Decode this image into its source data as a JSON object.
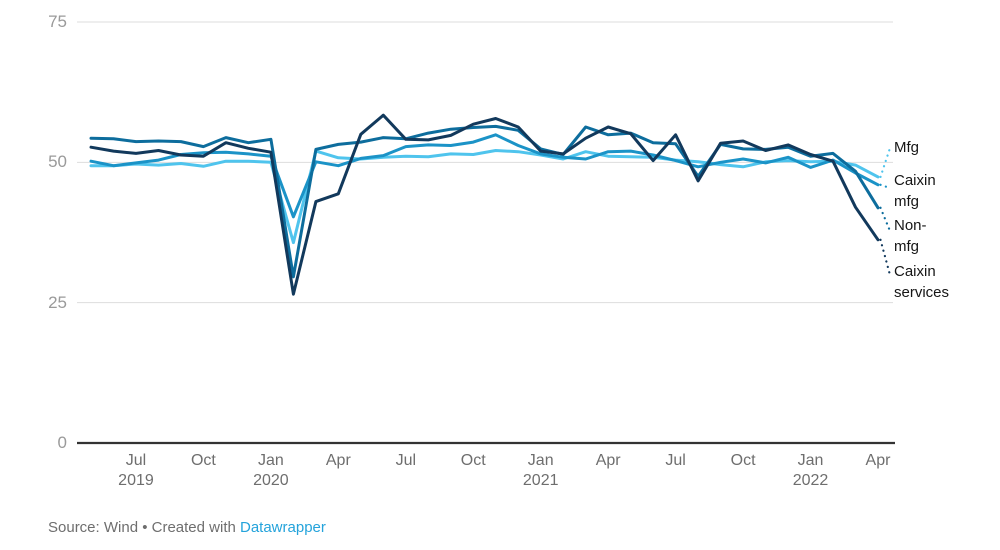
{
  "chart_data": {
    "type": "line",
    "x": [
      "May 2019",
      "Jun 2019",
      "Jul 2019",
      "Aug 2019",
      "Sep 2019",
      "Oct 2019",
      "Nov 2019",
      "Dec 2019",
      "Jan 2020",
      "Feb 2020",
      "Mar 2020",
      "Apr 2020",
      "May 2020",
      "Jun 2020",
      "Jul 2020",
      "Aug 2020",
      "Sep 2020",
      "Oct 2020",
      "Nov 2020",
      "Dec 2020",
      "Jan 2021",
      "Feb 2021",
      "Mar 2021",
      "Apr 2021",
      "May 2021",
      "Jun 2021",
      "Jul 2021",
      "Aug 2021",
      "Sep 2021",
      "Oct 2021",
      "Nov 2021",
      "Dec 2021",
      "Jan 2022",
      "Feb 2022",
      "Mar 2022",
      "Apr 2022"
    ],
    "series": [
      {
        "name": "Mfg",
        "color": "#4FC4ED",
        "values": [
          49.4,
          49.4,
          49.7,
          49.5,
          49.8,
          49.3,
          50.2,
          50.2,
          50.0,
          35.7,
          52.0,
          50.8,
          50.6,
          50.9,
          51.1,
          51.0,
          51.5,
          51.4,
          52.1,
          51.9,
          51.3,
          50.6,
          51.9,
          51.1,
          51.0,
          50.9,
          50.4,
          50.1,
          49.6,
          49.2,
          50.1,
          50.3,
          50.1,
          50.2,
          49.5,
          47.4
        ]
      },
      {
        "name": "Caixin mfg",
        "color": "#1B93C7",
        "values": [
          50.2,
          49.4,
          49.9,
          50.4,
          51.4,
          51.7,
          51.8,
          51.5,
          51.1,
          40.3,
          50.1,
          49.4,
          50.7,
          51.2,
          52.8,
          53.1,
          53.0,
          53.6,
          54.9,
          53.0,
          51.5,
          50.9,
          50.6,
          51.9,
          52.0,
          51.3,
          50.3,
          49.2,
          50.0,
          50.6,
          49.9,
          50.9,
          49.1,
          50.4,
          48.1,
          46.0
        ]
      },
      {
        "name": "Non-mfg",
        "color": "#0D6D9D",
        "values": [
          54.3,
          54.2,
          53.7,
          53.8,
          53.7,
          52.8,
          54.4,
          53.5,
          54.1,
          29.6,
          52.3,
          53.2,
          53.6,
          54.4,
          54.2,
          55.2,
          55.9,
          56.2,
          56.4,
          55.7,
          52.4,
          51.4,
          56.3,
          54.9,
          55.2,
          53.5,
          53.3,
          47.5,
          53.2,
          52.4,
          52.3,
          52.7,
          51.1,
          51.6,
          48.4,
          41.9
        ]
      },
      {
        "name": "Caixin services",
        "color": "#12395C",
        "values": [
          52.7,
          52.0,
          51.6,
          52.1,
          51.3,
          51.1,
          53.5,
          52.5,
          51.8,
          26.5,
          43.0,
          44.4,
          55.0,
          58.4,
          54.1,
          54.0,
          54.8,
          56.8,
          57.8,
          56.3,
          52.0,
          51.5,
          54.3,
          56.3,
          55.1,
          50.3,
          54.9,
          46.7,
          53.4,
          53.8,
          52.1,
          53.1,
          51.4,
          50.2,
          42.0,
          36.2
        ]
      }
    ],
    "y_ticks": [
      75,
      50,
      25,
      0
    ],
    "ylim": [
      0,
      75
    ],
    "x_ticks": [
      {
        "label": "Jul",
        "year": "2019",
        "index": 2
      },
      {
        "label": "Oct",
        "year": "",
        "index": 5
      },
      {
        "label": "Jan",
        "year": "2020",
        "index": 8
      },
      {
        "label": "Apr",
        "year": "",
        "index": 11
      },
      {
        "label": "Jul",
        "year": "",
        "index": 14
      },
      {
        "label": "Oct",
        "year": "",
        "index": 17
      },
      {
        "label": "Jan",
        "year": "2021",
        "index": 20
      },
      {
        "label": "Apr",
        "year": "",
        "index": 23
      },
      {
        "label": "Jul",
        "year": "",
        "index": 26
      },
      {
        "label": "Oct",
        "year": "",
        "index": 29
      },
      {
        "label": "Jan",
        "year": "2022",
        "index": 32
      },
      {
        "label": "Apr",
        "year": "",
        "index": 35
      }
    ],
    "legend": {
      "position": "right",
      "labels": [
        "Mfg",
        "Caixin mfg",
        "Non-mfg",
        "Caixin services"
      ]
    },
    "grid": "on",
    "title": "",
    "xlabel": "",
    "ylabel": ""
  },
  "colors": {
    "grid_line": "#DDDDDD",
    "baseline": "#333333",
    "y_axis_text": "#9A9A9A",
    "x_axis_text": "#6E6E6E",
    "legend_text": "#161616",
    "source_text": "#6E6E6E",
    "link": "#24A3DB",
    "background": "#FFFFFF"
  },
  "source": {
    "text": "Source: Wind • Created with ",
    "link_text": "Datawrapper"
  }
}
